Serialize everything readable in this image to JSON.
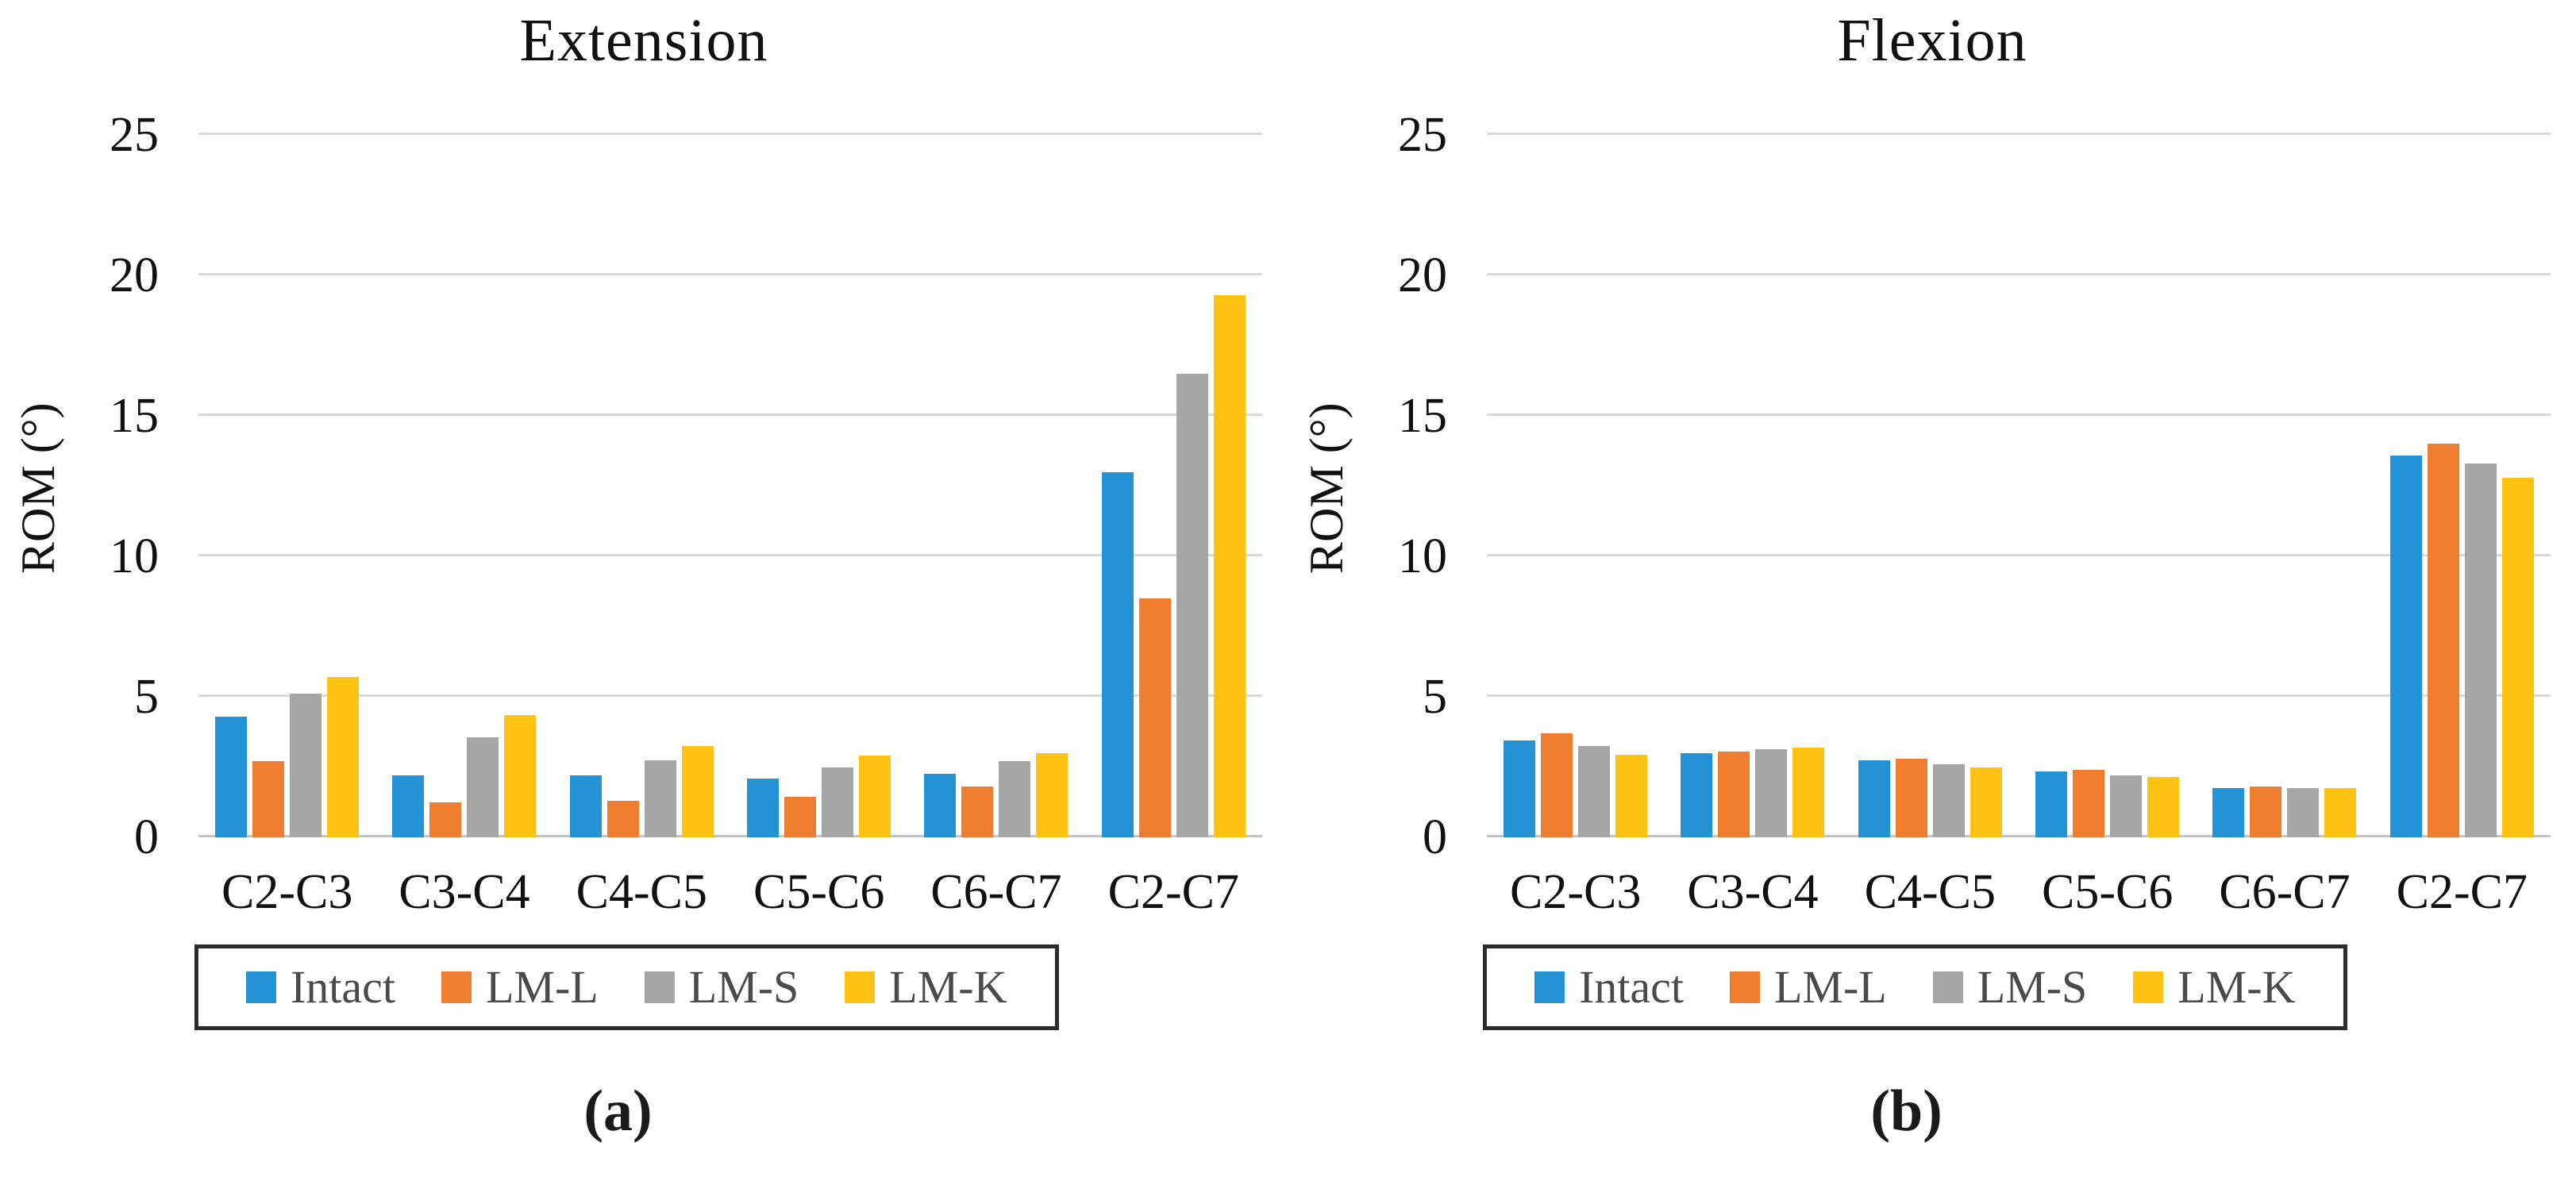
{
  "colors": {
    "intact": "#2493D6",
    "lm_l": "#EF7D2F",
    "lm_s": "#A6A6A6",
    "lm_k": "#FFC112",
    "gridline": "#D9D9D9",
    "axis_line": "#C4C4C4",
    "legend_border": "#2B2B2B",
    "legend_text": "#4A4A4A",
    "text": "#111111"
  },
  "chart_data": [
    {
      "type": "bar",
      "title": "Extension",
      "caption": "(a)",
      "xlabel": "",
      "ylabel": "ROM (°)",
      "ylim": [
        0,
        25
      ],
      "yticks": [
        0,
        5,
        10,
        15,
        20,
        25
      ],
      "grid": true,
      "legend_position": "bottom",
      "categories": [
        "C2-C3",
        "C3-C4",
        "C4-C5",
        "C5-C6",
        "C6-C7",
        "C2-C7"
      ],
      "series": [
        {
          "name": "Intact",
          "color": "#2493D6",
          "values": [
            4.3,
            2.2,
            2.2,
            2.1,
            2.25,
            13.0
          ]
        },
        {
          "name": "LM-L",
          "color": "#EF7D2F",
          "values": [
            2.7,
            1.25,
            1.3,
            1.45,
            1.8,
            8.5
          ]
        },
        {
          "name": "LM-S",
          "color": "#A6A6A6",
          "values": [
            5.1,
            3.55,
            2.75,
            2.5,
            2.7,
            16.5
          ]
        },
        {
          "name": "LM-K",
          "color": "#FFC112",
          "values": [
            5.7,
            4.35,
            3.25,
            2.9,
            3.0,
            19.3
          ]
        }
      ]
    },
    {
      "type": "bar",
      "title": "Flexion",
      "caption": "(b)",
      "xlabel": "",
      "ylabel": "ROM (°)",
      "ylim": [
        0,
        25
      ],
      "yticks": [
        0,
        5,
        10,
        15,
        20,
        25
      ],
      "grid": true,
      "legend_position": "bottom",
      "categories": [
        "C2-C3",
        "C3-C4",
        "C4-C5",
        "C5-C6",
        "C6-C7",
        "C2-C7"
      ],
      "series": [
        {
          "name": "Intact",
          "color": "#2493D6",
          "values": [
            3.45,
            3.0,
            2.75,
            2.35,
            1.75,
            13.6
          ]
        },
        {
          "name": "LM-L",
          "color": "#EF7D2F",
          "values": [
            3.7,
            3.05,
            2.8,
            2.4,
            1.8,
            14.0
          ]
        },
        {
          "name": "LM-S",
          "color": "#A6A6A6",
          "values": [
            3.25,
            3.15,
            2.6,
            2.2,
            1.75,
            13.3
          ]
        },
        {
          "name": "LM-K",
          "color": "#FFC112",
          "values": [
            2.95,
            3.2,
            2.5,
            2.15,
            1.75,
            12.8
          ]
        }
      ]
    }
  ]
}
